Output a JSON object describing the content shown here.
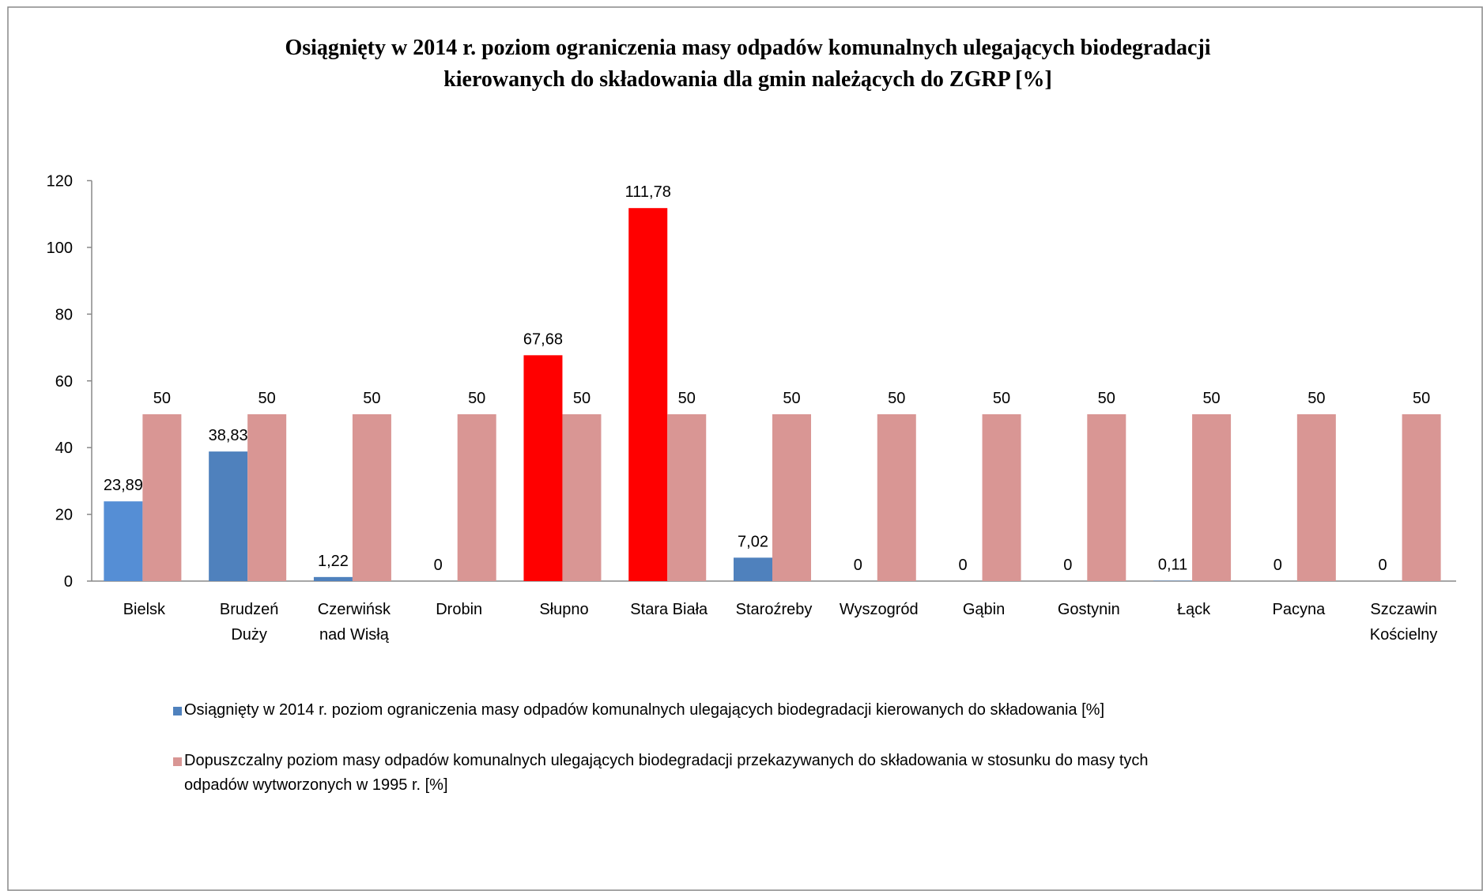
{
  "chart_data": {
    "type": "bar",
    "title": "Osiągnięty w 2014 r. poziom ograniczenia masy odpadów komunalnych ulegających biodegradacji\nkierowanych do składowania dla gmin należących do ZGRP [%]",
    "categories": [
      "Bielsk",
      "Brudzeń\nDuży",
      "Czerwińsk\nnad Wisłą",
      "Drobin",
      "Słupno",
      "Stara Biała",
      "Staroźreby",
      "Wyszogród",
      "Gąbin",
      "Gostynin",
      "Łąck",
      "Pacyna",
      "Szczawin\nKościelny"
    ],
    "series": [
      {
        "name": "Osiągnięty w 2014 r. poziom ograniczenia masy odpadów komunalnych ulegających biodegradacji kierowanych do składowania [%]",
        "color": "#4f81bd",
        "colors": [
          "#558ed5",
          "#4f81bd",
          "#4f81bd",
          "#4f81bd",
          "#ff0000",
          "#ff0000",
          "#4f81bd",
          "#4f81bd",
          "#4f81bd",
          "#4f81bd",
          "#4f81bd",
          "#4f81bd",
          "#4f81bd"
        ],
        "values": [
          23.89,
          38.83,
          1.22,
          0,
          67.68,
          111.78,
          7.02,
          0,
          0,
          0,
          0.11,
          0,
          0
        ],
        "value_labels": [
          "23,89",
          "38,83",
          "1,22",
          "0",
          "67,68",
          "111,78",
          "7,02",
          "0",
          "0",
          "0",
          "0,11",
          "0",
          "0"
        ]
      },
      {
        "name": "Dopuszczalny poziom masy odpadów komunalnych ulegających biodegradacji przekazywanych do składowania w stosunku do masy tych\nodpadów wytworzonych w 1995 r. [%]",
        "color": "#d99694",
        "values": [
          50,
          50,
          50,
          50,
          50,
          50,
          50,
          50,
          50,
          50,
          50,
          50,
          50
        ]
      }
    ],
    "ylim": [
      0,
      120
    ],
    "yticks": [
      0,
      20,
      40,
      60,
      80,
      100,
      120
    ],
    "grid": false,
    "legend": "bottom"
  }
}
